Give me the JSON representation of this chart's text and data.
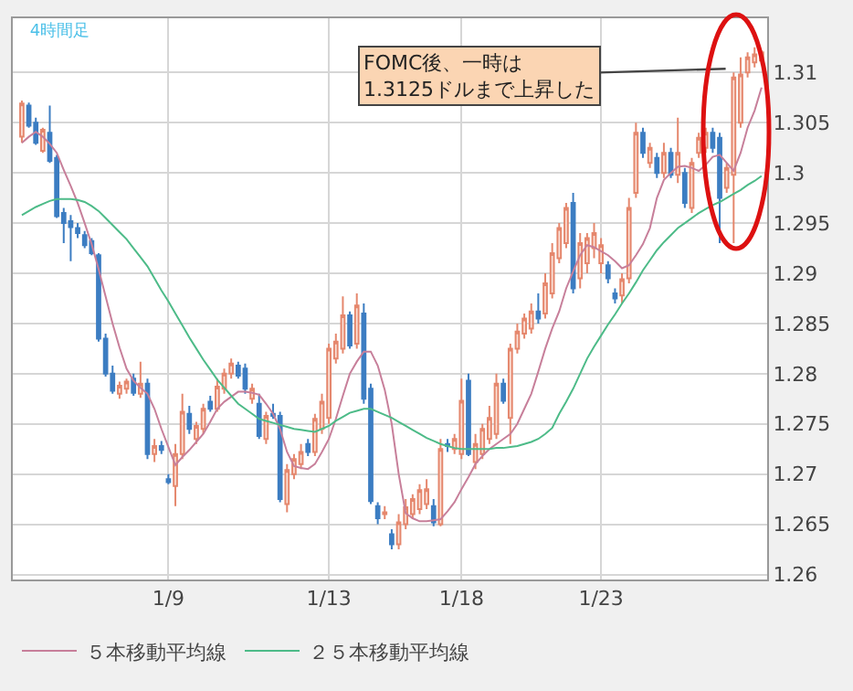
{
  "chart_data": {
    "type": "candlestick",
    "title": "4時間足",
    "categories": [
      null,
      null,
      null,
      null,
      null,
      null,
      null,
      null,
      null,
      null,
      null,
      null,
      null,
      null,
      null,
      null,
      null,
      null,
      null,
      null,
      null,
      "1/9",
      null,
      null,
      null,
      null,
      null,
      null,
      null,
      null,
      null,
      null,
      null,
      null,
      null,
      null,
      null,
      null,
      null,
      null,
      null,
      null,
      null,
      null,
      "1/13",
      null,
      null,
      null,
      null,
      null,
      null,
      null,
      null,
      null,
      null,
      null,
      null,
      null,
      null,
      null,
      null,
      null,
      null,
      "1/18",
      null,
      null,
      null,
      null,
      null,
      null,
      null,
      null,
      null,
      null,
      null,
      null,
      null,
      null,
      null,
      null,
      null,
      null,
      null,
      "1/23",
      null,
      null,
      null,
      null,
      null,
      null,
      null,
      null,
      null,
      null,
      null,
      null,
      null,
      null,
      null,
      null,
      null,
      null,
      null,
      null,
      null,
      null,
      null
    ],
    "ohlc": [
      [
        1.3036,
        1.3072,
        1.303,
        1.3069
      ],
      [
        1.3067,
        1.307,
        1.3045,
        1.3047
      ],
      [
        1.305,
        1.3055,
        1.3028,
        1.303
      ],
      [
        1.3022,
        1.3045,
        1.302,
        1.3043
      ],
      [
        1.304,
        1.3067,
        1.301,
        1.3012
      ],
      [
        1.3015,
        1.3018,
        1.2955,
        1.2957
      ],
      [
        1.296,
        1.2965,
        1.293,
        1.295
      ],
      [
        1.2952,
        1.2958,
        1.2912,
        1.2946
      ],
      [
        1.2945,
        1.295,
        1.2935,
        1.294
      ],
      [
        1.2938,
        1.2942,
        1.2925,
        1.2928
      ],
      [
        1.2932,
        1.2935,
        1.2918,
        1.292
      ],
      [
        1.2918,
        1.292,
        1.2832,
        1.2835
      ],
      [
        1.2835,
        1.284,
        1.2797,
        1.28
      ],
      [
        1.28,
        1.2808,
        1.278,
        1.2783
      ],
      [
        1.278,
        1.2792,
        1.2775,
        1.2788
      ],
      [
        1.2785,
        1.2795,
        1.278,
        1.2792
      ],
      [
        1.2795,
        1.28,
        1.2778,
        1.2781
      ],
      [
        1.278,
        1.2812,
        1.2776,
        1.279
      ],
      [
        1.279,
        1.2795,
        1.2715,
        1.272
      ],
      [
        1.272,
        1.2735,
        1.2712,
        1.2728
      ],
      [
        1.2728,
        1.2733,
        1.272,
        1.2724
      ],
      [
        1.2695,
        1.27,
        1.269,
        1.2692
      ],
      [
        1.2688,
        1.273,
        1.2668,
        1.272
      ],
      [
        1.272,
        1.278,
        1.2715,
        1.2762
      ],
      [
        1.276,
        1.2768,
        1.274,
        1.2745
      ],
      [
        1.2735,
        1.2752,
        1.273,
        1.2748
      ],
      [
        1.2745,
        1.277,
        1.274,
        1.2765
      ],
      [
        1.2772,
        1.2778,
        1.2762,
        1.2765
      ],
      [
        1.2765,
        1.2795,
        1.2762,
        1.2787
      ],
      [
        1.2785,
        1.2805,
        1.278,
        1.28
      ],
      [
        1.28,
        1.2815,
        1.2795,
        1.281
      ],
      [
        1.2808,
        1.2812,
        1.2795,
        1.2798
      ],
      [
        1.2805,
        1.281,
        1.278,
        1.2785
      ],
      [
        1.2775,
        1.279,
        1.277,
        1.2785
      ],
      [
        1.277,
        1.278,
        1.2735,
        1.2738
      ],
      [
        1.2735,
        1.2762,
        1.273,
        1.2758
      ],
      [
        1.276,
        1.277,
        1.2755,
        1.2758
      ],
      [
        1.2758,
        1.2762,
        1.2672,
        1.2675
      ],
      [
        1.267,
        1.271,
        1.2662,
        1.2704
      ],
      [
        1.27,
        1.272,
        1.2695,
        1.2715
      ],
      [
        1.271,
        1.273,
        1.2705,
        1.2722
      ],
      [
        1.273,
        1.2735,
        1.2718,
        1.2722
      ],
      [
        1.2722,
        1.276,
        1.2718,
        1.2755
      ],
      [
        1.2745,
        1.278,
        1.274,
        1.2772
      ],
      [
        1.2756,
        1.283,
        1.275,
        1.2825
      ],
      [
        1.2815,
        1.284,
        1.281,
        1.2832
      ],
      [
        1.2825,
        1.2877,
        1.282,
        1.2858
      ],
      [
        1.2858,
        1.2862,
        1.2825,
        1.2828
      ],
      [
        1.283,
        1.288,
        1.2825,
        1.2868
      ],
      [
        1.286,
        1.287,
        1.277,
        1.2775
      ],
      [
        1.2785,
        1.279,
        1.267,
        1.2673
      ],
      [
        1.2668,
        1.2672,
        1.265,
        1.2656
      ],
      [
        1.266,
        1.2668,
        1.2655,
        1.2662
      ],
      [
        1.264,
        1.2645,
        1.2625,
        1.263
      ],
      [
        1.263,
        1.266,
        1.2625,
        1.2652
      ],
      [
        1.265,
        1.2675,
        1.2645,
        1.2667
      ],
      [
        1.266,
        1.268,
        1.2655,
        1.2675
      ],
      [
        1.2665,
        1.269,
        1.266,
        1.2684
      ],
      [
        1.267,
        1.2695,
        1.2665,
        1.2685
      ],
      [
        1.2668,
        1.2675,
        1.2648,
        1.2652
      ],
      [
        1.265,
        1.2735,
        1.2648,
        1.2725
      ],
      [
        1.273,
        1.2735,
        1.2722,
        1.2728
      ],
      [
        1.2725,
        1.274,
        1.272,
        1.2735
      ],
      [
        1.272,
        1.2795,
        1.2715,
        1.2773
      ],
      [
        1.2793,
        1.28,
        1.2718,
        1.272
      ],
      [
        1.2712,
        1.274,
        1.2705,
        1.273
      ],
      [
        1.272,
        1.275,
        1.2715,
        1.2745
      ],
      [
        1.2735,
        1.2768,
        1.273,
        1.2756
      ],
      [
        1.274,
        1.28,
        1.2735,
        1.279
      ],
      [
        1.279,
        1.2795,
        1.277,
        1.2773
      ],
      [
        1.2756,
        1.283,
        1.273,
        1.2825
      ],
      [
        1.2825,
        1.285,
        1.282,
        1.2842
      ],
      [
        1.284,
        1.286,
        1.2835,
        1.2855
      ],
      [
        1.2845,
        1.287,
        1.284,
        1.2862
      ],
      [
        1.2862,
        1.288,
        1.285,
        1.2855
      ],
      [
        1.286,
        1.29,
        1.2855,
        1.289
      ],
      [
        1.288,
        1.293,
        1.2875,
        1.292
      ],
      [
        1.2915,
        1.295,
        1.291,
        1.2945
      ],
      [
        1.293,
        1.297,
        1.2925,
        1.2965
      ],
      [
        1.297,
        1.298,
        1.288,
        1.2885
      ],
      [
        1.2895,
        1.294,
        1.2885,
        1.293
      ],
      [
        1.291,
        1.294,
        1.29,
        1.2935
      ],
      [
        1.2925,
        1.295,
        1.2915,
        1.294
      ],
      [
        1.291,
        1.2935,
        1.29,
        1.2928
      ],
      [
        1.2908,
        1.2912,
        1.289,
        1.2895
      ],
      [
        1.288,
        1.2885,
        1.287,
        1.2875
      ],
      [
        1.2878,
        1.29,
        1.287,
        1.2894
      ],
      [
        1.2895,
        1.2975,
        1.289,
        1.2965
      ],
      [
        1.298,
        1.305,
        1.2975,
        1.304
      ],
      [
        1.304,
        1.3045,
        1.3015,
        1.302
      ],
      [
        1.301,
        1.303,
        1.3005,
        1.3025
      ],
      [
        1.3015,
        1.302,
        1.2995,
        1.3
      ],
      [
        1.3,
        1.303,
        1.2995,
        1.302
      ],
      [
        1.302,
        1.3025,
        1.2995,
        1.2998
      ],
      [
        1.2998,
        1.3055,
        1.299,
        1.302
      ],
      [
        1.3,
        1.3005,
        1.2965,
        1.297
      ],
      [
        1.2965,
        1.3015,
        1.296,
        1.301
      ],
      [
        1.302,
        1.304,
        1.3015,
        1.3035
      ],
      [
        1.3025,
        1.3045,
        1.302,
        1.304
      ],
      [
        1.304,
        1.3045,
        1.302,
        1.3025
      ],
      [
        1.3035,
        1.304,
        1.293,
        1.2975
      ],
      [
        1.2985,
        1.301,
        1.298,
        1.3005
      ],
      [
        1.2998,
        1.31,
        1.293,
        1.3095
      ],
      [
        1.305,
        1.3115,
        1.3045,
        1.3098
      ],
      [
        1.31,
        1.312,
        1.3095,
        1.3115
      ],
      [
        1.311,
        1.3125,
        1.3105,
        1.3118
      ],
      [
        1.3112,
        1.3122,
        1.3108,
        1.312
      ]
    ],
    "series": [
      {
        "type": "line",
        "name": "５本移動平均線",
        "color": "#c77f9a",
        "values": [
          1.303,
          1.3036,
          1.3041,
          1.3036,
          1.3029,
          1.302,
          1.3003,
          1.2987,
          1.297,
          1.295,
          1.2929,
          1.2904,
          1.2877,
          1.285,
          1.2826,
          1.2805,
          1.2793,
          1.2786,
          1.278,
          1.2765,
          1.2745,
          1.2727,
          1.2709,
          1.2717,
          1.2724,
          1.2732,
          1.274,
          1.2752,
          1.2765,
          1.2772,
          1.2777,
          1.2782,
          1.2782,
          1.2781,
          1.2779,
          1.277,
          1.276,
          1.2745,
          1.2722,
          1.2708,
          1.2706,
          1.2705,
          1.271,
          1.2722,
          1.2735,
          1.2755,
          1.2778,
          1.28,
          1.2812,
          1.2822,
          1.2822,
          1.2808,
          1.2784,
          1.275,
          1.27,
          1.2661,
          1.2656,
          1.2653,
          1.2653,
          1.2654,
          1.2655,
          1.2663,
          1.2672,
          1.2685,
          1.2697,
          1.271,
          1.2718,
          1.2725,
          1.273,
          1.2735,
          1.274,
          1.275,
          1.2765,
          1.278,
          1.2802,
          1.2825,
          1.2845,
          1.2862,
          1.2885,
          1.2902,
          1.2918,
          1.2928,
          1.2926,
          1.2922,
          1.2918,
          1.2912,
          1.2905,
          1.2908,
          1.2918,
          1.2929,
          1.2945,
          1.2975,
          1.2993,
          1.3,
          1.3006,
          1.3007,
          1.3005,
          1.3002,
          1.3008,
          1.3016,
          1.3018,
          1.301,
          1.3002,
          1.302,
          1.3045,
          1.3062,
          1.3085
        ]
      },
      {
        "type": "line",
        "name": "２５本移動平均線",
        "color": "#4dbb88",
        "values": [
          1.2958,
          1.2962,
          1.2966,
          1.2969,
          1.2972,
          1.2974,
          1.2974,
          1.2974,
          1.2973,
          1.2971,
          1.2967,
          1.2962,
          1.2955,
          1.2948,
          1.2941,
          1.2934,
          1.2925,
          1.2916,
          1.2907,
          1.2895,
          1.2883,
          1.2872,
          1.286,
          1.2848,
          1.2836,
          1.2825,
          1.2814,
          1.2804,
          1.2794,
          1.2786,
          1.2778,
          1.277,
          1.2765,
          1.276,
          1.2755,
          1.2753,
          1.2751,
          1.2749,
          1.2747,
          1.2745,
          1.2744,
          1.2743,
          1.2742,
          1.2745,
          1.2748,
          1.2753,
          1.2757,
          1.2761,
          1.2763,
          1.2765,
          1.2765,
          1.2762,
          1.2759,
          1.2756,
          1.2752,
          1.2748,
          1.2744,
          1.274,
          1.2736,
          1.2733,
          1.273,
          1.2728,
          1.2726,
          1.2725,
          1.2725,
          1.2725,
          1.2725,
          1.2725,
          1.2726,
          1.2726,
          1.2727,
          1.2728,
          1.273,
          1.2732,
          1.2735,
          1.274,
          1.2746,
          1.276,
          1.2772,
          1.2785,
          1.28,
          1.2815,
          1.2827,
          1.2838,
          1.2849,
          1.2859,
          1.287,
          1.288,
          1.2891,
          1.2903,
          1.2913,
          1.2923,
          1.2931,
          1.2938,
          1.2945,
          1.295,
          1.2955,
          1.296,
          1.2964,
          1.2968,
          1.2971,
          1.2975,
          1.2979,
          1.2983,
          1.2988,
          1.2992,
          1.2997
        ]
      }
    ],
    "ylim": [
      1.2595,
      1.3154
    ],
    "yticks": [
      1.26,
      1.265,
      1.27,
      1.275,
      1.28,
      1.285,
      1.29,
      1.295,
      1.3,
      1.305,
      1.31
    ],
    "grid": true,
    "legend": "bottom",
    "annotations": [
      "FOMC後、一時は\n1.3125ドルまで上昇した"
    ]
  }
}
